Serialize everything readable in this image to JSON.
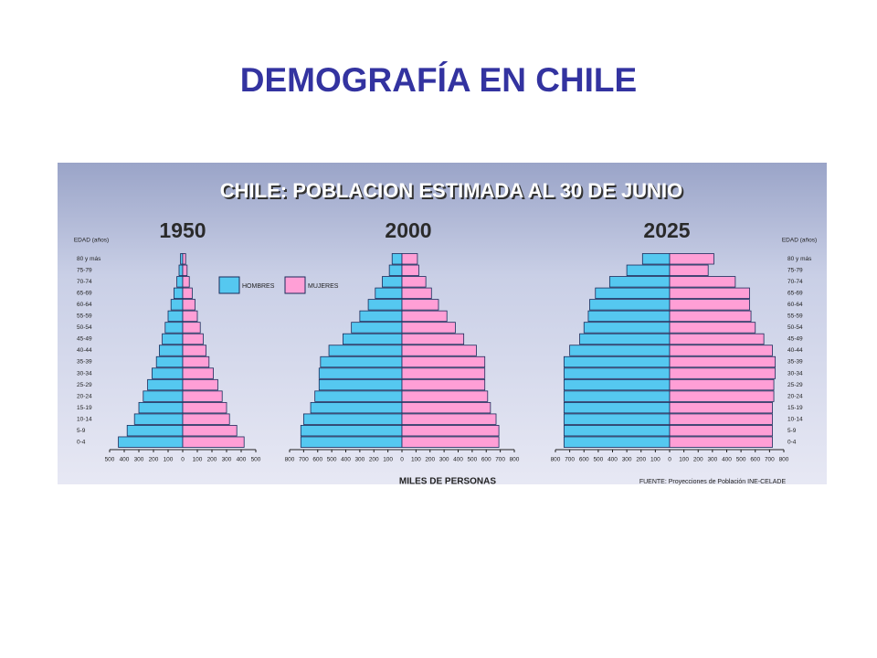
{
  "title": "DEMOGRAFÍA EN CHILE",
  "image_title": "CHILE: POBLACION ESTIMADA AL 30 DE JUNIO",
  "xlabel": "MILES DE PERSONAS",
  "source": "FUENTE: Proyecciones de Población INE-CELADE",
  "chart_data": [
    {
      "type": "pyramid",
      "title": "1950",
      "ylabel": "EDAD (años)",
      "categories": [
        "0-4",
        "5-9",
        "10-14",
        "15-19",
        "20-24",
        "25-29",
        "30-34",
        "35-39",
        "40-44",
        "45-49",
        "50-54",
        "55-59",
        "60-64",
        "65-69",
        "70-74",
        "75-79",
        "80 y más"
      ],
      "series": [
        {
          "name": "HOMBRES",
          "color": "#55c8f0",
          "values": [
            440,
            380,
            330,
            300,
            270,
            240,
            210,
            180,
            160,
            140,
            120,
            100,
            80,
            60,
            40,
            25,
            15
          ]
        },
        {
          "name": "MUJERES",
          "color": "#ff9fd6",
          "values": [
            420,
            370,
            320,
            300,
            270,
            240,
            210,
            180,
            160,
            140,
            120,
            100,
            85,
            65,
            45,
            30,
            20
          ]
        }
      ],
      "xlim": [
        -500,
        500
      ],
      "xticks": [
        {
          "value": -500,
          "label": "500"
        },
        {
          "value": -400,
          "label": "400"
        },
        {
          "value": -300,
          "label": "300"
        },
        {
          "value": -200,
          "label": "200"
        },
        {
          "value": -100,
          "label": "100"
        },
        0,
        100,
        200,
        300,
        400,
        500
      ]
    },
    {
      "type": "pyramid",
      "title": "2000",
      "categories": [
        "0-4",
        "5-9",
        "10-14",
        "15-19",
        "20-24",
        "25-29",
        "30-34",
        "35-39",
        "40-44",
        "45-49",
        "50-54",
        "55-59",
        "60-64",
        "65-69",
        "70-74",
        "75-79",
        "80 y más"
      ],
      "series": [
        {
          "name": "HOMBRES",
          "color": "#55c8f0",
          "values": [
            720,
            720,
            700,
            650,
            620,
            590,
            590,
            580,
            520,
            420,
            360,
            300,
            240,
            190,
            140,
            90,
            70
          ]
        },
        {
          "name": "MUJERES",
          "color": "#ff9fd6",
          "values": [
            690,
            690,
            670,
            630,
            610,
            590,
            590,
            590,
            530,
            440,
            380,
            320,
            260,
            210,
            170,
            120,
            110
          ]
        }
      ],
      "xlim": [
        -800,
        800
      ],
      "xticks": [
        {
          "value": -800,
          "label": "800"
        },
        {
          "value": -700,
          "label": "700"
        },
        {
          "value": -600,
          "label": "600"
        },
        {
          "value": -500,
          "label": "500"
        },
        {
          "value": -400,
          "label": "400"
        },
        {
          "value": -300,
          "label": "300"
        },
        {
          "value": -200,
          "label": "200"
        },
        {
          "value": -100,
          "label": "100"
        },
        0,
        100,
        200,
        300,
        400,
        500,
        600,
        700,
        800
      ]
    },
    {
      "type": "pyramid",
      "title": "2025",
      "ylabel": "EDAD (años)",
      "categories": [
        "0-4",
        "5-9",
        "10-14",
        "15-19",
        "20-24",
        "25-29",
        "30-34",
        "35-39",
        "40-44",
        "45-49",
        "50-54",
        "55-59",
        "60-64",
        "65-69",
        "70-74",
        "75-79",
        "80 y más"
      ],
      "series": [
        {
          "name": "HOMBRES",
          "color": "#55c8f0",
          "values": [
            740,
            740,
            740,
            740,
            740,
            740,
            740,
            740,
            700,
            630,
            600,
            570,
            560,
            520,
            420,
            300,
            190
          ]
        },
        {
          "name": "MUJERES",
          "color": "#ff9fd6",
          "values": [
            720,
            720,
            720,
            720,
            730,
            730,
            740,
            740,
            720,
            660,
            600,
            570,
            560,
            560,
            460,
            270,
            310
          ]
        }
      ],
      "xlim": [
        -800,
        800
      ],
      "xticks": [
        {
          "value": -800,
          "label": "800"
        },
        {
          "value": -700,
          "label": "700"
        },
        {
          "value": -600,
          "label": "600"
        },
        {
          "value": -500,
          "label": "500"
        },
        {
          "value": -400,
          "label": "400"
        },
        {
          "value": -300,
          "label": "300"
        },
        {
          "value": -200,
          "label": "200"
        },
        {
          "value": -100,
          "label": "100"
        },
        0,
        100,
        200,
        300,
        400,
        500,
        600,
        700,
        800
      ]
    }
  ]
}
